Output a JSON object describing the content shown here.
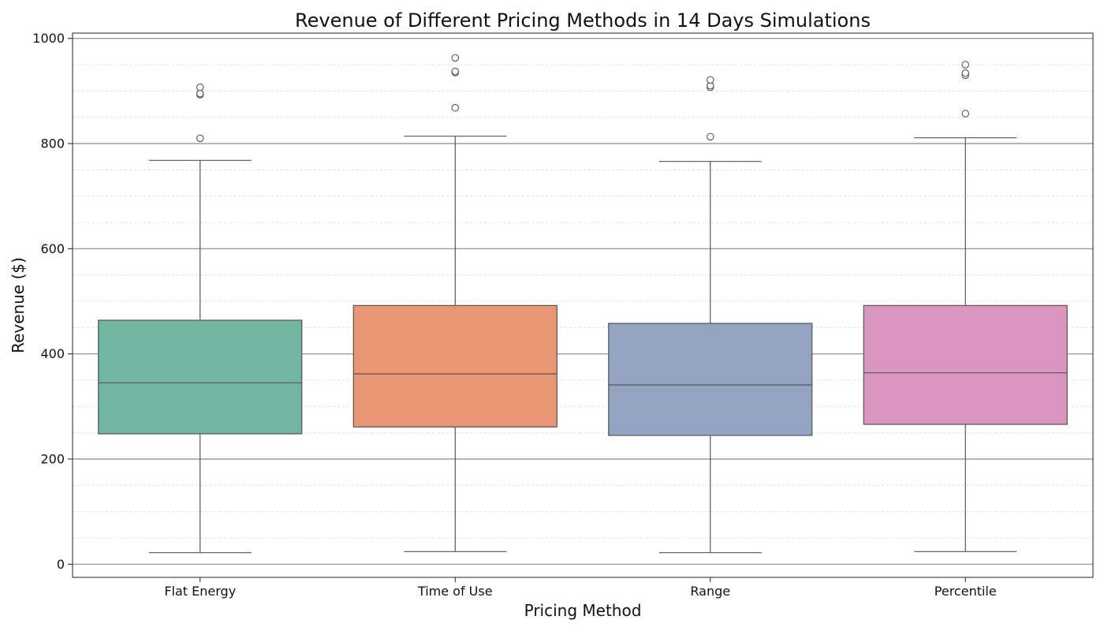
{
  "chart_data": {
    "type": "box",
    "title": "Revenue of Different Pricing Methods in 14 Days Simulations",
    "xlabel": "Pricing Method",
    "ylabel": "Revenue ($)",
    "ylim": [
      -25,
      1010
    ],
    "yticks": [
      0,
      200,
      400,
      600,
      800,
      1000
    ],
    "grid": {
      "major": true,
      "minor": true,
      "minor_step": 50
    },
    "categories": [
      "Flat Energy",
      "Time of Use",
      "Range",
      "Percentile"
    ],
    "series": [
      {
        "category": "Flat Energy",
        "color": "#72b6a1",
        "whisker_low": 22,
        "q1": 248,
        "median": 345,
        "q3": 464,
        "whisker_high": 768,
        "outliers": [
          810,
          893,
          895,
          907
        ]
      },
      {
        "category": "Time of Use",
        "color": "#e99675",
        "whisker_low": 24,
        "q1": 261,
        "median": 362,
        "q3": 492,
        "whisker_high": 814,
        "outliers": [
          868,
          935,
          937,
          963
        ]
      },
      {
        "category": "Range",
        "color": "#95a3c3",
        "whisker_low": 22,
        "q1": 245,
        "median": 341,
        "q3": 458,
        "whisker_high": 766,
        "outliers": [
          813,
          907,
          910,
          921
        ]
      },
      {
        "category": "Percentile",
        "color": "#db96c0",
        "whisker_low": 24,
        "q1": 266,
        "median": 364,
        "q3": 492,
        "whisker_high": 811,
        "outliers": [
          857,
          930,
          934,
          950
        ]
      }
    ]
  }
}
